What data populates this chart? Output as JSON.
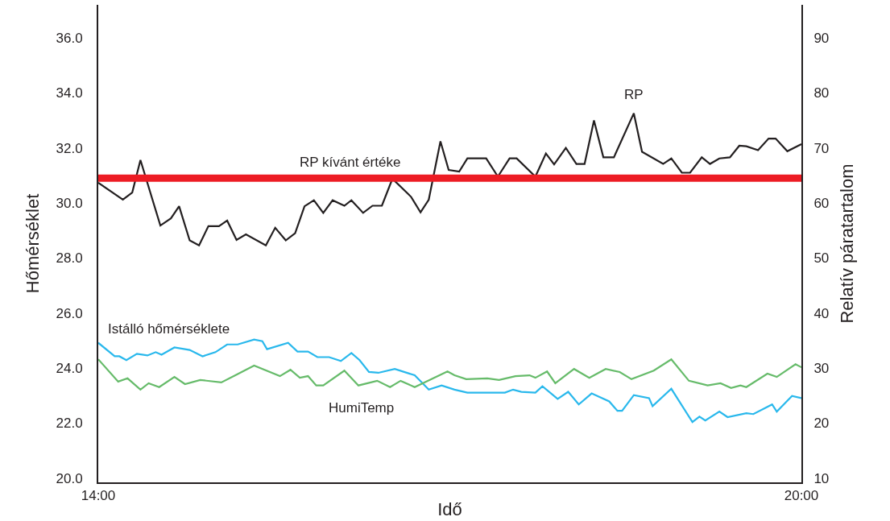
{
  "chart_data": {
    "type": "line",
    "xlabel": "Idő",
    "ylabel": "Hőmérséklet",
    "y2label": "Relatív páratartalom",
    "xlim": [
      14,
      20
    ],
    "xticks": [
      {
        "value": 14,
        "label": "14:00"
      },
      {
        "value": 20,
        "label": "20:00"
      }
    ],
    "ylim": [
      19.85,
      37.2
    ],
    "yticks": [
      {
        "value": 20,
        "label": "20.0"
      },
      {
        "value": 22,
        "label": "22.0"
      },
      {
        "value": 24,
        "label": "24.0"
      },
      {
        "value": 26,
        "label": "26.0"
      },
      {
        "value": 28,
        "label": "28.0"
      },
      {
        "value": 30,
        "label": "30.0"
      },
      {
        "value": 32,
        "label": "32.0"
      },
      {
        "value": 34,
        "label": "34.0"
      },
      {
        "value": 36,
        "label": "36.0"
      }
    ],
    "y2lim": [
      9.25,
      96
    ],
    "y2ticks": [
      10,
      20,
      30,
      40,
      50,
      60,
      70,
      80,
      90
    ],
    "legend": false,
    "marker": "none",
    "line_style": "solid",
    "ref_lines": [
      {
        "axis": "y2",
        "value": 64.5,
        "label": "RP kívánt értéke",
        "color": "#ed1c24"
      }
    ],
    "series": [
      {
        "name": "RP",
        "color": "#231f20",
        "axis": "y2",
        "x": [
          14.0,
          14.21,
          14.29,
          14.36,
          14.53,
          14.62,
          14.69,
          14.78,
          14.86,
          14.94,
          15.03,
          15.1,
          15.18,
          15.26,
          15.43,
          15.51,
          15.6,
          15.68,
          15.76,
          15.84,
          15.92,
          16.0,
          16.1,
          16.16,
          16.26,
          16.34,
          16.42,
          16.51,
          16.67,
          16.75,
          16.82,
          16.92,
          16.99,
          17.08,
          17.15,
          17.31,
          17.41,
          17.51,
          17.57,
          17.73,
          17.82,
          17.89,
          17.99,
          18.08,
          18.15,
          18.23,
          18.31,
          18.4,
          18.57,
          18.64,
          18.82,
          18.89,
          18.98,
          19.05,
          19.15,
          19.22,
          19.3,
          19.39,
          19.47,
          19.53,
          19.63,
          19.72,
          19.78,
          19.88,
          20.0
        ],
        "values": [
          63.7,
          60.6,
          61.9,
          67.8,
          55.9,
          57.2,
          59.4,
          53.2,
          52.3,
          55.8,
          55.8,
          56.8,
          53.3,
          54.3,
          52.3,
          55.5,
          53.2,
          54.5,
          59.4,
          60.5,
          58.2,
          60.5,
          59.5,
          60.5,
          58.2,
          59.5,
          59.5,
          64.4,
          61.1,
          58.3,
          60.6,
          71.2,
          66.0,
          65.7,
          68.1,
          68.1,
          64.8,
          68.1,
          68.1,
          64.8,
          69.0,
          67.0,
          70.0,
          67.1,
          67.1,
          75.0,
          68.3,
          68.3,
          76.3,
          69.3,
          67.1,
          68.1,
          65.5,
          65.5,
          68.3,
          67.1,
          68.1,
          68.3,
          70.4,
          70.3,
          69.6,
          71.7,
          71.7,
          69.4,
          70.7
        ]
      },
      {
        "name": "Istálló hőmérséklete",
        "color": "#29b8ec",
        "x": [
          14.0,
          14.14,
          14.18,
          14.24,
          14.33,
          14.42,
          14.49,
          14.54,
          14.65,
          14.78,
          14.89,
          15.0,
          15.1,
          15.19,
          15.33,
          15.4,
          15.44,
          15.62,
          15.7,
          15.79,
          15.87,
          15.97,
          16.07,
          16.16,
          16.23,
          16.31,
          16.39,
          16.53,
          16.7,
          16.82,
          16.93,
          17.04,
          17.15,
          17.47,
          17.54,
          17.61,
          17.73,
          17.79,
          17.92,
          18.01,
          18.1,
          18.21,
          18.36,
          18.43,
          18.47,
          18.57,
          18.7,
          18.73,
          18.89,
          19.07,
          19.13,
          19.18,
          19.3,
          19.37,
          19.53,
          19.59,
          19.75,
          19.79,
          19.92,
          20.0
        ],
        "values": [
          24.92,
          24.43,
          24.43,
          24.29,
          24.52,
          24.46,
          24.58,
          24.49,
          24.75,
          24.66,
          24.43,
          24.58,
          24.86,
          24.86,
          25.04,
          24.98,
          24.69,
          24.92,
          24.6,
          24.6,
          24.4,
          24.4,
          24.26,
          24.55,
          24.29,
          23.86,
          23.83,
          23.97,
          23.74,
          23.22,
          23.37,
          23.22,
          23.11,
          23.11,
          23.22,
          23.14,
          23.11,
          23.34,
          22.88,
          23.14,
          22.68,
          23.08,
          22.79,
          22.45,
          22.45,
          23.02,
          22.91,
          22.62,
          23.25,
          22.04,
          22.24,
          22.1,
          22.42,
          22.22,
          22.36,
          22.33,
          22.68,
          22.42,
          22.99,
          22.91
        ]
      },
      {
        "name": "HumiTemp",
        "color": "#66bb6a",
        "x": [
          14.0,
          14.17,
          14.25,
          14.36,
          14.43,
          14.52,
          14.65,
          14.74,
          14.87,
          15.05,
          15.17,
          15.33,
          15.55,
          15.64,
          15.72,
          15.79,
          15.86,
          15.92,
          16.1,
          16.22,
          16.38,
          16.49,
          16.58,
          16.7,
          16.98,
          17.04,
          17.14,
          17.32,
          17.42,
          17.56,
          17.68,
          17.73,
          17.83,
          17.9,
          18.06,
          18.19,
          18.33,
          18.45,
          18.55,
          18.74,
          18.89,
          19.04,
          19.2,
          19.31,
          19.4,
          19.48,
          19.53,
          19.71,
          19.79,
          19.95,
          20.0
        ],
        "values": [
          24.32,
          23.51,
          23.63,
          23.22,
          23.45,
          23.31,
          23.68,
          23.42,
          23.57,
          23.48,
          23.74,
          24.09,
          23.71,
          23.94,
          23.65,
          23.71,
          23.37,
          23.37,
          23.91,
          23.37,
          23.54,
          23.31,
          23.54,
          23.31,
          23.88,
          23.74,
          23.6,
          23.63,
          23.57,
          23.71,
          23.74,
          23.65,
          23.88,
          23.45,
          23.97,
          23.65,
          23.97,
          23.86,
          23.6,
          23.91,
          24.32,
          23.54,
          23.37,
          23.45,
          23.28,
          23.37,
          23.31,
          23.8,
          23.68,
          24.14,
          24.03
        ]
      }
    ]
  }
}
